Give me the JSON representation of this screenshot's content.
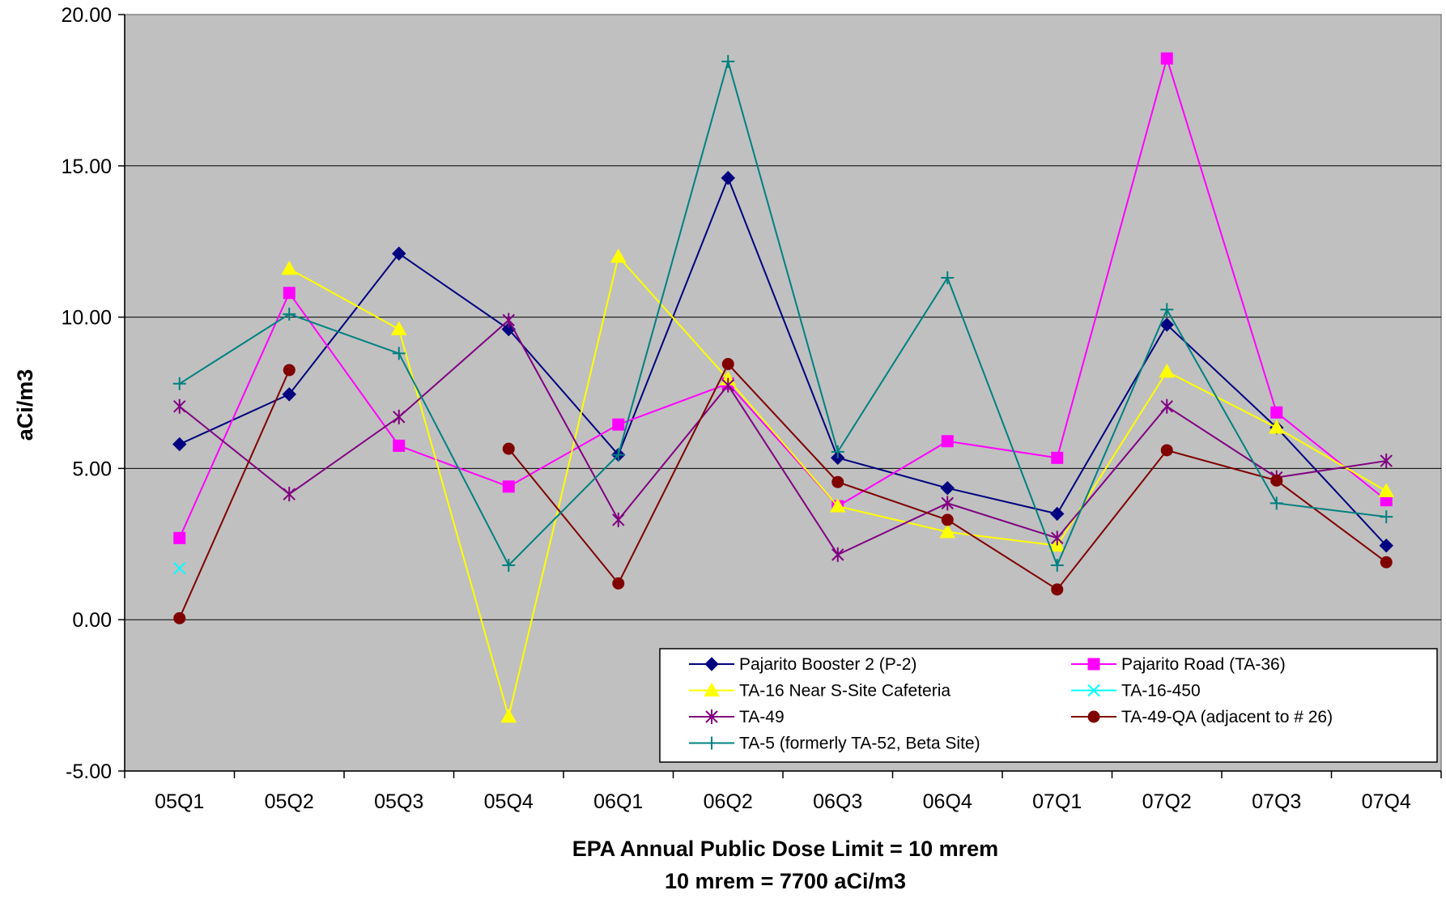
{
  "chart_data": {
    "type": "line",
    "title": "",
    "xlabel": "EPA Annual Public Dose Limit = 10 mrem",
    "xlabel_line2": "10 mrem = 7700 aCi/m3",
    "ylabel": "aCi/m3",
    "ylim": [
      -5,
      20
    ],
    "yticks": [
      "-5.00",
      "0.00",
      "5.00",
      "10.00",
      "15.00",
      "20.00"
    ],
    "ytick_values": [
      -5,
      0,
      5,
      10,
      15,
      20
    ],
    "categories": [
      "05Q1",
      "05Q2",
      "05Q3",
      "05Q4",
      "06Q1",
      "06Q2",
      "06Q3",
      "06Q4",
      "07Q1",
      "07Q2",
      "07Q3",
      "07Q4"
    ],
    "grid": true,
    "plot_background": "#c0c0c0",
    "legend_position": "bottom-right",
    "series": [
      {
        "name": "Pajarito Booster 2 (P-2)",
        "color": "#000080",
        "marker": "diamond",
        "values": [
          5.8,
          7.45,
          12.1,
          9.6,
          5.45,
          14.6,
          5.35,
          4.35,
          3.5,
          9.75,
          6.35,
          2.45
        ]
      },
      {
        "name": "Pajarito Road (TA-36)",
        "color": "#ff00ff",
        "marker": "square",
        "values": [
          2.7,
          10.8,
          5.75,
          4.4,
          6.45,
          7.8,
          3.75,
          5.9,
          5.35,
          18.55,
          6.85,
          3.95
        ]
      },
      {
        "name": "TA-16 Near S-Site Cafeteria",
        "color": "#ffff00",
        "marker": "triangle",
        "values": [
          null,
          11.6,
          9.6,
          -3.2,
          12.0,
          7.95,
          3.75,
          2.9,
          2.45,
          8.2,
          6.35,
          4.25
        ]
      },
      {
        "name": "TA-16-450",
        "color": "#00ffff",
        "marker": "x",
        "values": [
          1.7,
          null,
          null,
          null,
          null,
          null,
          null,
          null,
          null,
          null,
          null,
          null
        ]
      },
      {
        "name": "TA-49",
        "color": "#800080",
        "marker": "star",
        "values": [
          7.05,
          4.15,
          6.7,
          9.9,
          3.3,
          7.75,
          2.15,
          3.85,
          2.7,
          7.05,
          4.7,
          5.25
        ]
      },
      {
        "name": "TA-49-QA (adjacent to # 26)",
        "color": "#800000",
        "marker": "circle",
        "values": [
          0.05,
          8.25,
          null,
          5.65,
          1.2,
          8.45,
          4.55,
          3.3,
          1.0,
          5.6,
          4.6,
          1.9
        ]
      },
      {
        "name": "TA-5 (formerly TA-52, Beta Site)",
        "color": "#008080",
        "marker": "plus",
        "values": [
          7.8,
          10.1,
          8.8,
          1.8,
          5.45,
          18.45,
          5.55,
          11.3,
          1.8,
          10.25,
          3.85,
          3.4
        ]
      }
    ]
  }
}
